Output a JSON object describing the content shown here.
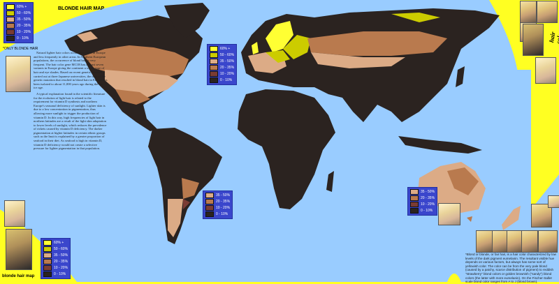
{
  "title": "BLONDE HAIR MAP",
  "note_only_blonde": "*ONLY BLONDE HAIR",
  "caption_bottom_left": "blonde hair map",
  "side_label": "hair color",
  "colors": {
    "ocean": "#99ccff",
    "background": "#ffff22",
    "legend_bg": "#3a46cc",
    "c60": "#ffff33",
    "c50": "#cccc00",
    "c35": "#dcab86",
    "c20": "#b97a4e",
    "c10": "#7a3c34",
    "c0": "#2b2320"
  },
  "legend_full": [
    {
      "label": "60% +",
      "color": "#ffff33"
    },
    {
      "label": "50 - 60%",
      "color": "#cccc00"
    },
    {
      "label": "35 - 50%",
      "color": "#dcab86"
    },
    {
      "label": "20 - 35%",
      "color": "#b97a4e"
    },
    {
      "label": "10 - 20%",
      "color": "#7a3c34"
    },
    {
      "label": "0 - 10%",
      "color": "#2b2320"
    }
  ],
  "legend_short": [
    {
      "label": "35 - 50%",
      "color": "#dcab86"
    },
    {
      "label": "20 - 35%",
      "color": "#b97a4e"
    },
    {
      "label": "10 - 20%",
      "color": "#7a3c34"
    },
    {
      "label": "0 - 10%",
      "color": "#2b2320"
    }
  ],
  "paragraphs": [
    "Natural lighter hair colors occur most often in Europe and less frequently in other areas. In Northern European populations, the occurrence of blond hair is very frequent. The hair color gene MC1R has at least seven variants in Europe giving the continent a wide range of hair and eye shades. Based on recent genetic research carried out at three Japanese universities, the date of the genetic mutation that resulted in blond hair in Europe has been isolated to about 11,000 years ago during the last ice age.",
    "A typical explanation found in the scientific literature for the evolution of light hair is related to the requirement for vitamin D synthesis and northern Europe's seasonal deficiency of sunlight. Lighter skin is due to a low concentration in pigmentation, thus allowing more sunlight to trigger the production of vitamin D. In this way, high frequencies of light hair in northern latitudes are a result of the light skin adaptation to lower levels of sunlight, which reduces the prevalence of rickets caused by vitamin D deficiency. The darker pigmentation at higher latitudes in certain ethnic groups such as the Inuit is explained by a greater proportion of seafood in their diet. As seafood is high in vitamin D, vitamin D deficiency would not create a selective pressure for lighter pigmentation in that population."
  ],
  "footnote": "*Blond or blonde, or fair hair, is a hair color characterized by low levels of the dark pigment eumelanin. The resultant visible hue depends on various factors, but always has some sort of yellowish color. The color can be from the very pale blond (caused by a patchy, scarce distribution of pigment) to reddish \"strawberry\" blond colors or golden brownish (\"sandy\") blond colors (the latter with more eumelanin). On the Fischer-Saller scale blond color ranges from A to J (blond brown)."
}
